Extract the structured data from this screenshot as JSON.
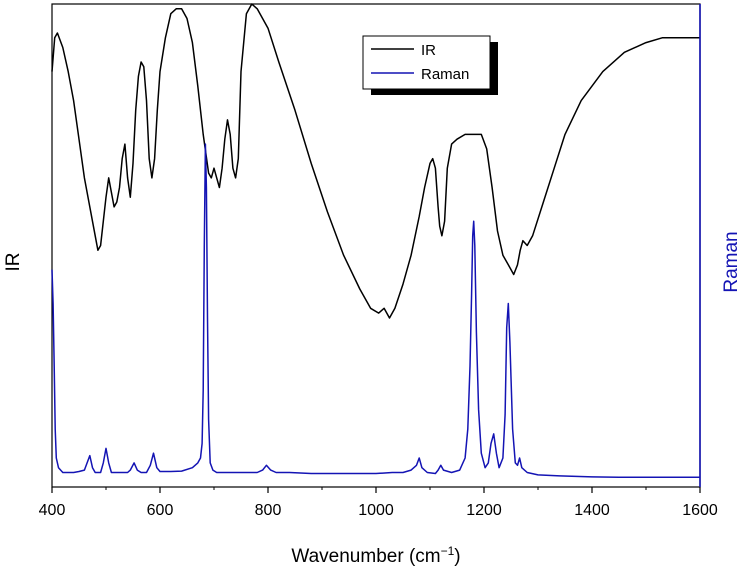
{
  "chart_data": {
    "type": "line",
    "xlabel": "Wavenumber (cm",
    "xlabel_sup": "−1",
    "xlabel_close": ")",
    "ylabel_left": "IR",
    "ylabel_right": "Raman",
    "xlim": [
      400,
      1600
    ],
    "xticks": [
      "400",
      "600",
      "800",
      "1000",
      "1200",
      "1400",
      "1600"
    ],
    "ylim": [
      0,
      100
    ],
    "grid": false,
    "legend_position": "top-center",
    "colors": {
      "ir": "#000000",
      "raman": "#1414b4",
      "right_axis": "#1414b4"
    },
    "series": [
      {
        "name": "IR",
        "x": [
          400,
          405,
          410,
          420,
          430,
          440,
          450,
          460,
          470,
          480,
          485,
          490,
          495,
          500,
          505,
          510,
          515,
          520,
          525,
          530,
          535,
          540,
          545,
          550,
          555,
          560,
          565,
          570,
          575,
          580,
          585,
          590,
          595,
          600,
          610,
          620,
          630,
          640,
          650,
          660,
          670,
          680,
          690,
          695,
          700,
          705,
          710,
          715,
          720,
          725,
          730,
          735,
          740,
          745,
          750,
          760,
          770,
          780,
          800,
          820,
          850,
          880,
          910,
          940,
          970,
          990,
          1005,
          1015,
          1025,
          1035,
          1050,
          1065,
          1080,
          1090,
          1100,
          1105,
          1110,
          1115,
          1118,
          1122,
          1127,
          1132,
          1140,
          1150,
          1165,
          1180,
          1195,
          1205,
          1215,
          1225,
          1235,
          1245,
          1255,
          1262,
          1267,
          1272,
          1280,
          1290,
          1310,
          1330,
          1350,
          1380,
          1420,
          1460,
          1500,
          1530,
          1560,
          1580,
          1600
        ],
        "y": [
          86,
          93,
          94,
          91,
          86,
          80,
          72,
          64,
          58,
          52,
          49,
          50,
          55,
          60,
          64,
          61,
          58,
          59,
          62,
          68,
          71,
          64,
          60,
          67,
          78,
          85,
          88,
          87,
          80,
          68,
          64,
          68,
          78,
          86,
          93,
          98,
          99,
          99,
          97,
          92,
          83,
          73,
          65,
          64,
          66,
          64,
          62,
          66,
          72,
          76,
          73,
          66,
          64,
          68,
          86,
          98,
          100,
          99,
          95,
          88,
          78,
          67,
          57,
          48,
          41,
          37,
          36,
          37,
          35,
          37,
          42,
          48,
          56,
          62,
          67,
          68,
          66,
          58,
          54,
          52,
          55,
          66,
          71,
          72,
          73,
          73,
          73,
          70,
          62,
          53,
          48,
          46,
          44,
          46,
          49,
          51,
          50,
          52,
          59,
          66,
          73,
          80,
          86,
          90,
          92,
          93,
          93,
          93,
          93
        ]
      },
      {
        "name": "Raman",
        "x": [
          400,
          402,
          404,
          406,
          408,
          412,
          420,
          430,
          440,
          450,
          460,
          465,
          470,
          475,
          480,
          490,
          495,
          500,
          505,
          510,
          520,
          530,
          540,
          545,
          552,
          558,
          565,
          575,
          582,
          588,
          594,
          600,
          620,
          640,
          660,
          670,
          675,
          678,
          680,
          682,
          684,
          686,
          688,
          690,
          693,
          698,
          705,
          720,
          740,
          760,
          780,
          790,
          797,
          805,
          815,
          840,
          880,
          920,
          960,
          1000,
          1030,
          1050,
          1065,
          1075,
          1080,
          1085,
          1095,
          1110,
          1115,
          1120,
          1125,
          1140,
          1155,
          1165,
          1170,
          1174,
          1177,
          1179,
          1181,
          1183,
          1186,
          1190,
          1195,
          1202,
          1208,
          1213,
          1218,
          1223,
          1228,
          1235,
          1239,
          1242,
          1245,
          1248,
          1253,
          1258,
          1262,
          1266,
          1270,
          1280,
          1300,
          1340,
          1400,
          1450,
          1500,
          1550,
          1600
        ],
        "y": [
          45,
          38,
          25,
          12,
          6,
          4,
          3,
          3,
          3,
          3.2,
          3.5,
          5,
          6.5,
          4,
          3,
          3,
          5,
          8,
          5,
          3,
          3,
          3,
          3,
          3.5,
          5,
          3.5,
          3,
          3,
          4.5,
          7,
          4,
          3.2,
          3.2,
          3.3,
          4,
          5,
          6,
          9,
          20,
          50,
          71,
          62,
          35,
          14,
          5,
          3.5,
          3,
          3,
          3,
          3,
          3,
          3.5,
          4.5,
          3.5,
          3,
          3,
          2.8,
          2.8,
          2.8,
          2.8,
          3,
          3,
          3.5,
          4.5,
          6,
          4,
          3,
          2.8,
          3.5,
          4.5,
          3.5,
          3,
          3.5,
          6,
          12,
          25,
          40,
          52,
          55,
          50,
          32,
          16,
          7,
          4,
          5,
          9,
          11,
          7,
          4,
          6,
          15,
          33,
          38,
          30,
          12,
          5,
          4.5,
          6,
          4,
          3,
          2.5,
          2.3,
          2.1,
          2,
          2,
          2,
          2
        ]
      }
    ]
  }
}
